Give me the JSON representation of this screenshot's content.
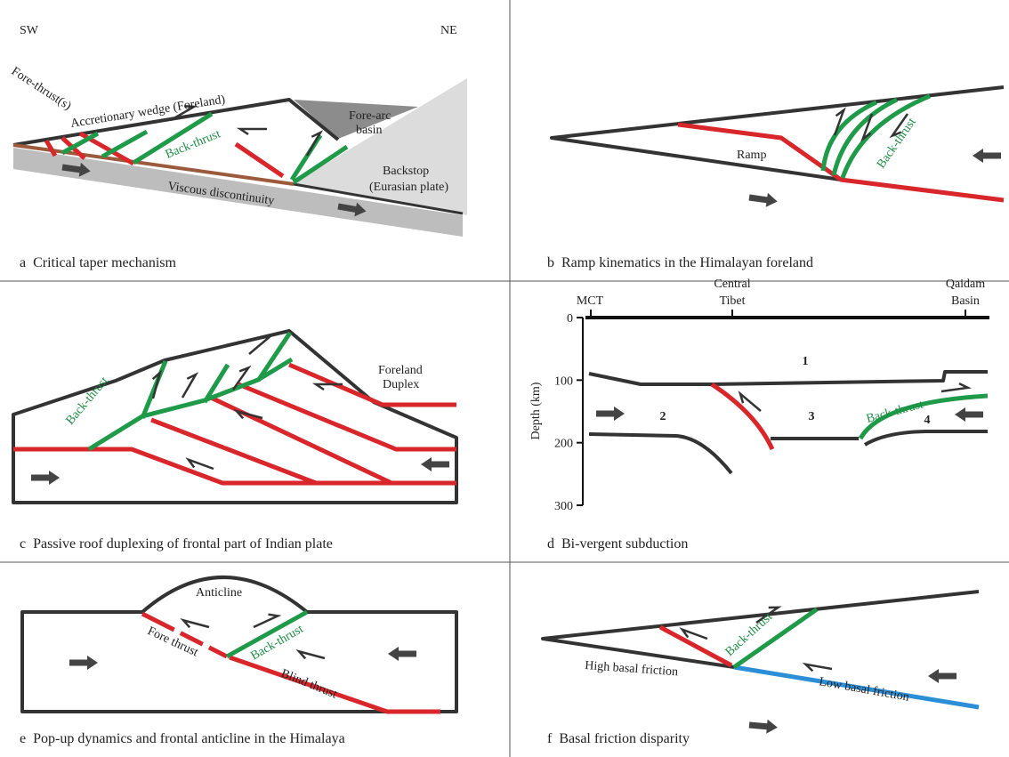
{
  "panels": {
    "a": {
      "left": "SW",
      "right": "NE",
      "fore_thrusts": "Fore-thrust(s)",
      "wedge": "Accretionary wedge (Foreland)",
      "fore_arc_basin": [
        "Fore-arc",
        "basin"
      ],
      "back_thrust": "Back-thrust",
      "backstop": [
        "Backstop",
        "(Eurasian plate)"
      ],
      "discontinuity": "Viscous discontinuity",
      "caption": "a  Critical taper mechanism"
    },
    "b": {
      "ramp": "Ramp",
      "back_thrust": "Back-thrust",
      "caption": "b  Ramp kinematics in the Himalayan foreland"
    },
    "c": {
      "foreland_duplex": [
        "Foreland",
        "Duplex"
      ],
      "back_thrust": "Back-thrust",
      "caption": "c  Passive roof duplexing of frontal part of Indian plate"
    },
    "d": {
      "mct": "MCT",
      "central_tibet": [
        "Central",
        "Tibet"
      ],
      "qaidam_basin": [
        "Qaidam",
        "Basin"
      ],
      "depth_label": "Depth (km)",
      "depth_ticks": [
        0,
        100,
        200,
        300
      ],
      "zones": [
        "1",
        "2",
        "3",
        "4"
      ],
      "back_thrust": "Back-thrust",
      "caption": "d  Bi-vergent subduction"
    },
    "e": {
      "anticline": "Anticline",
      "fore_thrust": "Fore thrust",
      "back_thrust": "Back-thrust",
      "blind_thrust": "Blind thrust",
      "caption": "e  Pop-up dynamics and frontal anticline in the Himalaya"
    },
    "f": {
      "back_thrust": "Back-thrust",
      "high_friction": "High basal friction",
      "low_friction": "Low basal friction",
      "caption": "f  Basal friction disparity"
    }
  }
}
